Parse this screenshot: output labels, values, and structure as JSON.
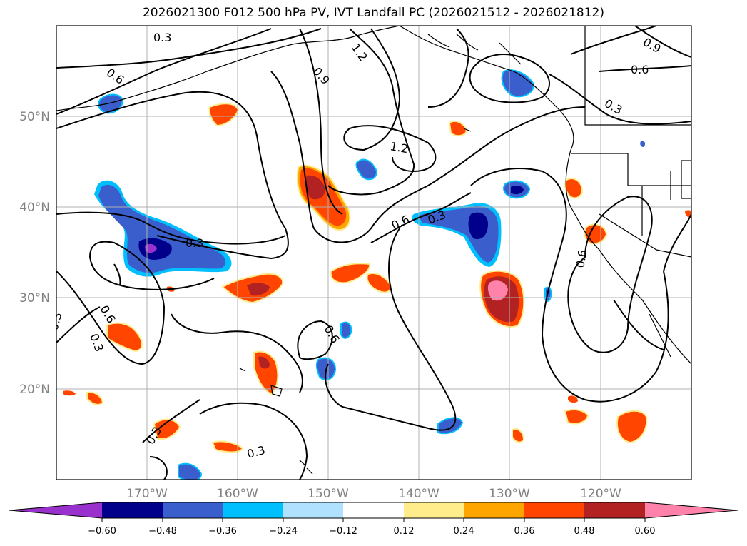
{
  "title": "2026021300 F012 500 hPa PV, IVT Landfall PC (2026021512 - 2026021812)",
  "map": {
    "lon_ticks": [
      "170°W",
      "160°W",
      "150°W",
      "140°W",
      "130°W",
      "120°W"
    ],
    "lat_ticks": [
      "50°N",
      "40°N",
      "30°N",
      "20°N"
    ],
    "contour_labels": [
      {
        "text": "0.3"
      },
      {
        "text": "0.6"
      },
      {
        "text": "0.9"
      },
      {
        "text": "1.2"
      },
      {
        "text": "0.9"
      },
      {
        "text": "0.6"
      },
      {
        "text": "1.2"
      },
      {
        "text": "0.3"
      },
      {
        "text": "0.6"
      },
      {
        "text": "0.3"
      },
      {
        "text": "0.3"
      },
      {
        "text": "0.6"
      },
      {
        "text": "0.3"
      },
      {
        "text": "0.3"
      },
      {
        "text": "0.6"
      },
      {
        "text": "0.6"
      },
      {
        "text": "0.3"
      },
      {
        "text": "0.3"
      }
    ]
  },
  "colorbar": {
    "ticks": [
      "−0.60",
      "−0.48",
      "−0.36",
      "−0.24",
      "−0.12",
      "0.12",
      "0.24",
      "0.36",
      "0.48",
      "0.60"
    ],
    "colors": [
      "#9932cc",
      "#00008b",
      "#3a5fcd",
      "#00bfff",
      "#b0e2ff",
      "#ffffff",
      "#ffec8b",
      "#ffa500",
      "#ff4500",
      "#b22222",
      "#ff82ab"
    ]
  }
}
